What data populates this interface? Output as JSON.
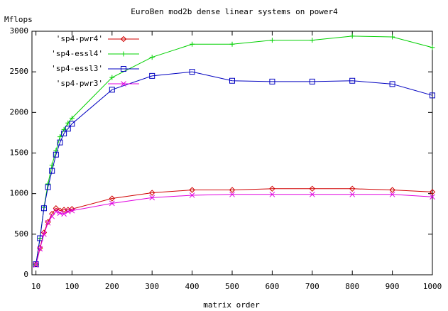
{
  "chart_data": {
    "type": "line",
    "title": "EuroBen mod2b dense linear systems on power4",
    "y_label": "Mflops",
    "x_label": "matrix order",
    "x": [
      10,
      20,
      30,
      40,
      50,
      60,
      70,
      80,
      90,
      100,
      200,
      300,
      400,
      500,
      600,
      700,
      800,
      900,
      1000
    ],
    "series": [
      {
        "name": "'sp4-pwr4'",
        "color": "#d00000",
        "marker": "diamond",
        "values": [
          130,
          330,
          520,
          650,
          750,
          820,
          790,
          800,
          800,
          810,
          940,
          1010,
          1045,
          1045,
          1060,
          1060,
          1060,
          1045,
          1020
        ]
      },
      {
        "name": "'sp4-essl4'",
        "color": "#00d000",
        "marker": "plus",
        "values": [
          130,
          450,
          830,
          1120,
          1350,
          1530,
          1700,
          1790,
          1870,
          1930,
          2430,
          2680,
          2840,
          2840,
          2890,
          2890,
          2940,
          2930,
          2800
        ]
      },
      {
        "name": "'sp4-essl3'",
        "color": "#0000c0",
        "marker": "square",
        "values": [
          130,
          450,
          820,
          1080,
          1280,
          1480,
          1630,
          1740,
          1800,
          1860,
          2280,
          2450,
          2500,
          2390,
          2380,
          2380,
          2390,
          2350,
          2210
        ]
      },
      {
        "name": "'sp4-pwr3'",
        "color": "#e000e0",
        "marker": "cross",
        "values": [
          120,
          320,
          500,
          640,
          720,
          780,
          760,
          750,
          780,
          790,
          880,
          950,
          980,
          990,
          990,
          990,
          990,
          990,
          960
        ]
      }
    ],
    "xlim": [
      0,
      1000
    ],
    "xticks": [
      10,
      100,
      200,
      300,
      400,
      500,
      600,
      700,
      800,
      900,
      1000
    ],
    "ylim": [
      0,
      3000
    ],
    "yticks": [
      0,
      500,
      1000,
      1500,
      2000,
      2500,
      3000
    ],
    "legend": "upper-left",
    "grid": false
  }
}
